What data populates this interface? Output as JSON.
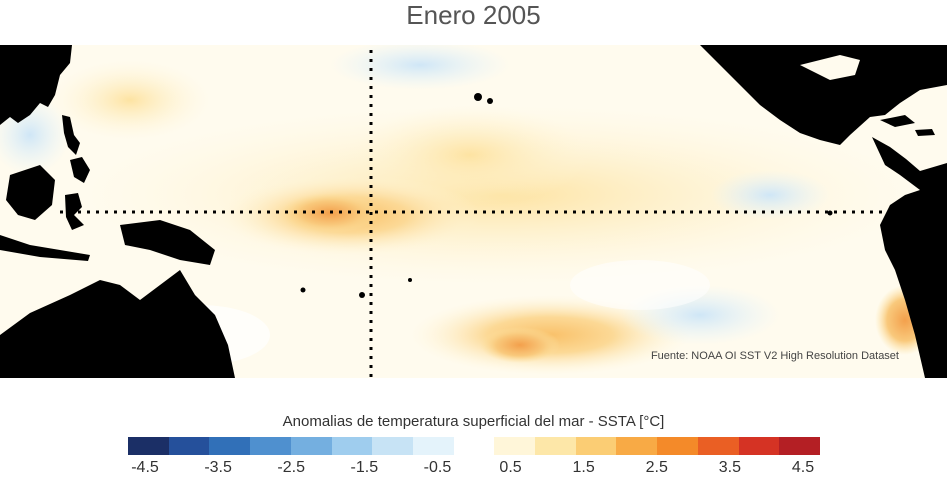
{
  "title": "Enero 2005",
  "source": "Fuente: NOAA OI SST V2 High Resolution Dataset",
  "colorbar": {
    "label": "Anomalias de temperatura superficial del mar - SSTA  [°C]",
    "colors": [
      "#1b2f66",
      "#25509b",
      "#3170b8",
      "#4f90cf",
      "#74afe0",
      "#9fcdee",
      "#c7e3f5",
      "#e4f3fb",
      "#ffffff",
      "#fff6d9",
      "#fde7a8",
      "#fbcd74",
      "#f8aa45",
      "#f48a29",
      "#ea5f24",
      "#d53324",
      "#b41f24"
    ],
    "ticks": [
      "-4.5",
      "-3.5",
      "-2.5",
      "-1.5",
      "-0.5",
      "0.5",
      "1.5",
      "2.5",
      "3.5",
      "4.5"
    ]
  }
}
